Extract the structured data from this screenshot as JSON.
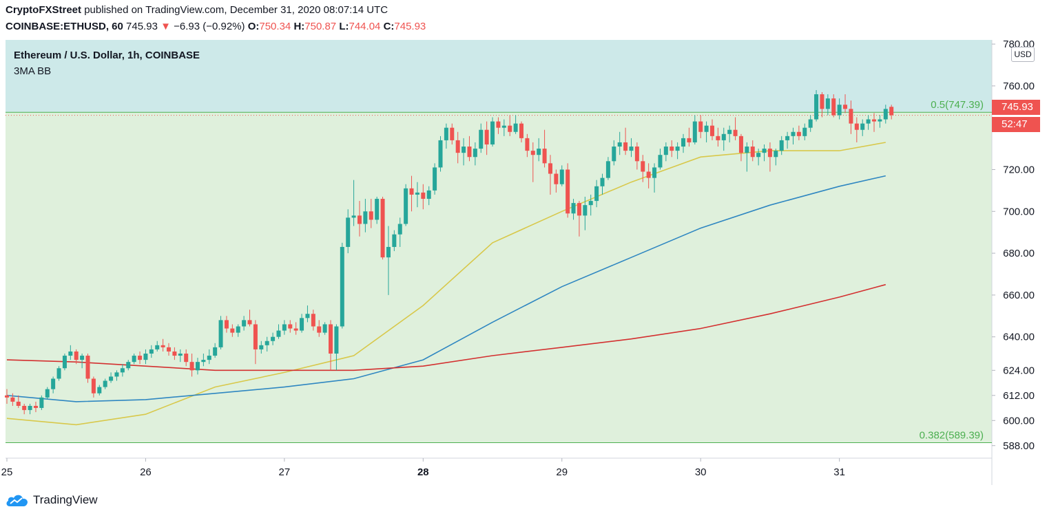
{
  "header": {
    "author": "CryptoFXStreet",
    "published": "published on TradingView.com, December 31, 2020 08:07:14 UTC",
    "symbol": "COINBASE:ETHUSD, 60",
    "last": "745.93",
    "change_arrow": "▼",
    "change": "−6.93 (−0.92%)",
    "o_label": "O:",
    "o": "750.34",
    "h_label": "H:",
    "h": "750.87",
    "l_label": "L:",
    "l": "744.04",
    "c_label": "C:",
    "c": "745.93"
  },
  "legend": {
    "title": "Ethereum / U.S. Dollar, 1h, COINBASE",
    "indicator": "3MA BB"
  },
  "price_badge": {
    "price": "745.93",
    "countdown": "52:47"
  },
  "currency": "USD",
  "footer": {
    "brand": "TradingView"
  },
  "colors": {
    "up": "#26a69a",
    "down": "#ef5350",
    "zone_upper": "#cde9e9",
    "zone_lower": "#dff0dc",
    "fib_line": "#4caf50",
    "ma_short": "#d8c84a",
    "ma_mid": "#2e86c1",
    "ma_long": "#d32f2f"
  },
  "chart_data": {
    "type": "candlestick",
    "ylim": [
      582,
      782
    ],
    "y_ticks": [
      "780.00",
      "760.00",
      "720.00",
      "700.00",
      "680.00",
      "660.00",
      "640.00",
      "624.00",
      "612.00",
      "600.00",
      "588.00"
    ],
    "x_ticks": [
      "25",
      "26",
      "27",
      "28",
      "29",
      "30",
      "31"
    ],
    "x_tick_hours": [
      0,
      24,
      48,
      72,
      96,
      120,
      144
    ],
    "fib_levels": [
      {
        "label": "0.5(747.39)",
        "value": 747.39
      },
      {
        "label": "0.382(589.39)",
        "value": 589.39
      }
    ],
    "last_price": 745.93,
    "moving_averages": [
      {
        "color_key": "ma_short",
        "hours": [
          0,
          12,
          24,
          36,
          48,
          60,
          72,
          84,
          96,
          108,
          120,
          132,
          144,
          152
        ],
        "values": [
          601,
          598,
          603,
          616,
          623,
          631,
          655,
          685,
          700,
          714,
          726,
          729,
          729,
          733
        ]
      },
      {
        "color_key": "ma_mid",
        "hours": [
          0,
          12,
          24,
          36,
          48,
          60,
          72,
          84,
          96,
          108,
          120,
          132,
          144,
          152
        ],
        "values": [
          612,
          609,
          610,
          613,
          616,
          620,
          629,
          647,
          664,
          678,
          692,
          703,
          712,
          717
        ]
      },
      {
        "color_key": "ma_long",
        "hours": [
          0,
          12,
          24,
          36,
          48,
          60,
          72,
          84,
          96,
          108,
          120,
          132,
          144,
          152
        ],
        "values": [
          629,
          628,
          626,
          624,
          624,
          624,
          626,
          631,
          635,
          639,
          644,
          651,
          659,
          665
        ]
      }
    ],
    "candles": [
      [
        0,
        612,
        615,
        608,
        611
      ],
      [
        1,
        611,
        613,
        607,
        609
      ],
      [
        2,
        609,
        612,
        606,
        607
      ],
      [
        3,
        607,
        608,
        603,
        605
      ],
      [
        4,
        605,
        608,
        603,
        607
      ],
      [
        5,
        607,
        609,
        604,
        606
      ],
      [
        6,
        606,
        612,
        605,
        611
      ],
      [
        7,
        611,
        616,
        610,
        615
      ],
      [
        8,
        615,
        621,
        613,
        620
      ],
      [
        9,
        620,
        626,
        619,
        625
      ],
      [
        10,
        625,
        632,
        624,
        631
      ],
      [
        11,
        631,
        636,
        629,
        633
      ],
      [
        12,
        633,
        634,
        627,
        629
      ],
      [
        13,
        629,
        632,
        625,
        631
      ],
      [
        14,
        631,
        632,
        618,
        620
      ],
      [
        15,
        620,
        621,
        611,
        613
      ],
      [
        16,
        613,
        617,
        612,
        616
      ],
      [
        17,
        616,
        620,
        615,
        619
      ],
      [
        18,
        619,
        623,
        618,
        621
      ],
      [
        19,
        621,
        624,
        619,
        623
      ],
      [
        20,
        623,
        627,
        621,
        625
      ],
      [
        21,
        625,
        629,
        624,
        628
      ],
      [
        22,
        628,
        632,
        627,
        631
      ],
      [
        23,
        631,
        633,
        627,
        629
      ],
      [
        24,
        629,
        634,
        627,
        632
      ],
      [
        25,
        632,
        636,
        630,
        634
      ],
      [
        26,
        634,
        638,
        633,
        636
      ],
      [
        27,
        636,
        639,
        633,
        635
      ],
      [
        28,
        635,
        637,
        631,
        633
      ],
      [
        29,
        633,
        635,
        629,
        631
      ],
      [
        30,
        631,
        634,
        628,
        632
      ],
      [
        31,
        632,
        634,
        626,
        628
      ],
      [
        32,
        628,
        632,
        621,
        624
      ],
      [
        33,
        624,
        630,
        622,
        628
      ],
      [
        34,
        628,
        632,
        626,
        629
      ],
      [
        35,
        629,
        634,
        627,
        631
      ],
      [
        36,
        631,
        637,
        630,
        635
      ],
      [
        37,
        635,
        650,
        634,
        648
      ],
      [
        38,
        648,
        650,
        642,
        644
      ],
      [
        39,
        644,
        646,
        640,
        642
      ],
      [
        40,
        642,
        646,
        640,
        645
      ],
      [
        41,
        645,
        650,
        643,
        648
      ],
      [
        42,
        648,
        653,
        645,
        646
      ],
      [
        43,
        646,
        648,
        627,
        634
      ],
      [
        44,
        634,
        638,
        632,
        636
      ],
      [
        45,
        636,
        640,
        633,
        638
      ],
      [
        46,
        638,
        642,
        636,
        640
      ],
      [
        47,
        640,
        646,
        639,
        643
      ],
      [
        48,
        643,
        648,
        641,
        646
      ],
      [
        49,
        646,
        648,
        642,
        644
      ],
      [
        50,
        644,
        647,
        641,
        643
      ],
      [
        51,
        643,
        651,
        642,
        649
      ],
      [
        52,
        649,
        655,
        647,
        651
      ],
      [
        53,
        651,
        653,
        643,
        645
      ],
      [
        54,
        645,
        648,
        640,
        642
      ],
      [
        55,
        642,
        647,
        641,
        646
      ],
      [
        56,
        646,
        648,
        624,
        632
      ],
      [
        57,
        632,
        646,
        624,
        645
      ],
      [
        58,
        645,
        685,
        644,
        683
      ],
      [
        59,
        683,
        701,
        680,
        697
      ],
      [
        60,
        697,
        715,
        693,
        698
      ],
      [
        61,
        698,
        705,
        688,
        694
      ],
      [
        62,
        694,
        706,
        690,
        700
      ],
      [
        63,
        700,
        706,
        692,
        696
      ],
      [
        64,
        696,
        707,
        694,
        706
      ],
      [
        65,
        706,
        707,
        677,
        678
      ],
      [
        66,
        678,
        693,
        660,
        683
      ],
      [
        67,
        683,
        691,
        681,
        689
      ],
      [
        68,
        689,
        697,
        683,
        694
      ],
      [
        69,
        694,
        713,
        693,
        711
      ],
      [
        70,
        711,
        717,
        700,
        708
      ],
      [
        71,
        708,
        714,
        702,
        709
      ],
      [
        72,
        709,
        713,
        701,
        706
      ],
      [
        73,
        706,
        712,
        703,
        710
      ],
      [
        74,
        710,
        723,
        708,
        721
      ],
      [
        75,
        721,
        736,
        719,
        734
      ],
      [
        76,
        734,
        742,
        730,
        740
      ],
      [
        77,
        740,
        742,
        732,
        734
      ],
      [
        78,
        734,
        738,
        723,
        728
      ],
      [
        79,
        728,
        735,
        722,
        731
      ],
      [
        80,
        731,
        736,
        724,
        726
      ],
      [
        81,
        726,
        733,
        722,
        730
      ],
      [
        82,
        730,
        742,
        728,
        739
      ],
      [
        83,
        739,
        743,
        727,
        732
      ],
      [
        84,
        732,
        745,
        731,
        743
      ],
      [
        85,
        743,
        745,
        737,
        740
      ],
      [
        86,
        740,
        744,
        736,
        741
      ],
      [
        87,
        741,
        746,
        736,
        738
      ],
      [
        88,
        738,
        746,
        737,
        742
      ],
      [
        89,
        742,
        743,
        733,
        735
      ],
      [
        90,
        735,
        737,
        726,
        729
      ],
      [
        91,
        729,
        733,
        714,
        727
      ],
      [
        92,
        727,
        735,
        724,
        730
      ],
      [
        93,
        730,
        739,
        721,
        723
      ],
      [
        94,
        723,
        727,
        708,
        718
      ],
      [
        95,
        718,
        720,
        709,
        713
      ],
      [
        96,
        713,
        722,
        712,
        720
      ],
      [
        97,
        720,
        723,
        697,
        699
      ],
      [
        98,
        699,
        706,
        696,
        704
      ],
      [
        99,
        704,
        705,
        688,
        698
      ],
      [
        100,
        698,
        707,
        691,
        703
      ],
      [
        101,
        703,
        708,
        698,
        705
      ],
      [
        102,
        705,
        715,
        702,
        712
      ],
      [
        103,
        712,
        718,
        708,
        716
      ],
      [
        104,
        716,
        726,
        715,
        724
      ],
      [
        105,
        724,
        734,
        722,
        731
      ],
      [
        106,
        731,
        738,
        727,
        733
      ],
      [
        107,
        733,
        740,
        727,
        729
      ],
      [
        108,
        729,
        735,
        726,
        731
      ],
      [
        109,
        731,
        733,
        720,
        724
      ],
      [
        110,
        724,
        727,
        714,
        719
      ],
      [
        111,
        719,
        723,
        711,
        716
      ],
      [
        112,
        716,
        723,
        709,
        721
      ],
      [
        113,
        721,
        730,
        720,
        727
      ],
      [
        114,
        727,
        733,
        724,
        731
      ],
      [
        115,
        731,
        734,
        726,
        729
      ],
      [
        116,
        729,
        733,
        725,
        731
      ],
      [
        117,
        731,
        737,
        728,
        735
      ],
      [
        118,
        735,
        740,
        731,
        733
      ],
      [
        119,
        733,
        746,
        732,
        743
      ],
      [
        120,
        743,
        746,
        735,
        738
      ],
      [
        121,
        738,
        743,
        733,
        741
      ],
      [
        122,
        741,
        744,
        734,
        736
      ],
      [
        123,
        736,
        740,
        731,
        734
      ],
      [
        124,
        734,
        740,
        729,
        737
      ],
      [
        125,
        737,
        741,
        733,
        739
      ],
      [
        126,
        739,
        745,
        734,
        736
      ],
      [
        127,
        736,
        737,
        724,
        728
      ],
      [
        128,
        728,
        733,
        719,
        731
      ],
      [
        129,
        731,
        734,
        724,
        726
      ],
      [
        130,
        726,
        730,
        722,
        728
      ],
      [
        131,
        728,
        732,
        724,
        730
      ],
      [
        132,
        730,
        733,
        719,
        726
      ],
      [
        133,
        726,
        730,
        722,
        729
      ],
      [
        134,
        729,
        736,
        727,
        734
      ],
      [
        135,
        734,
        738,
        730,
        736
      ],
      [
        136,
        736,
        740,
        732,
        738
      ],
      [
        137,
        738,
        741,
        734,
        736
      ],
      [
        138,
        736,
        742,
        734,
        740
      ],
      [
        139,
        740,
        746,
        738,
        744
      ],
      [
        140,
        744,
        758,
        743,
        756
      ],
      [
        141,
        756,
        757,
        745,
        749
      ],
      [
        142,
        749,
        756,
        746,
        754
      ],
      [
        143,
        754,
        756,
        745,
        746
      ],
      [
        144,
        746,
        754,
        744,
        751
      ],
      [
        145,
        751,
        756,
        747,
        749
      ],
      [
        146,
        749,
        753,
        737,
        742
      ],
      [
        147,
        742,
        745,
        733,
        739
      ],
      [
        148,
        739,
        744,
        736,
        742
      ],
      [
        149,
        742,
        746,
        739,
        744
      ],
      [
        150,
        744,
        747,
        738,
        743
      ],
      [
        151,
        743,
        746,
        740,
        744
      ],
      [
        152,
        744,
        751,
        742,
        749
      ],
      [
        153,
        750,
        751,
        744,
        746
      ]
    ]
  }
}
